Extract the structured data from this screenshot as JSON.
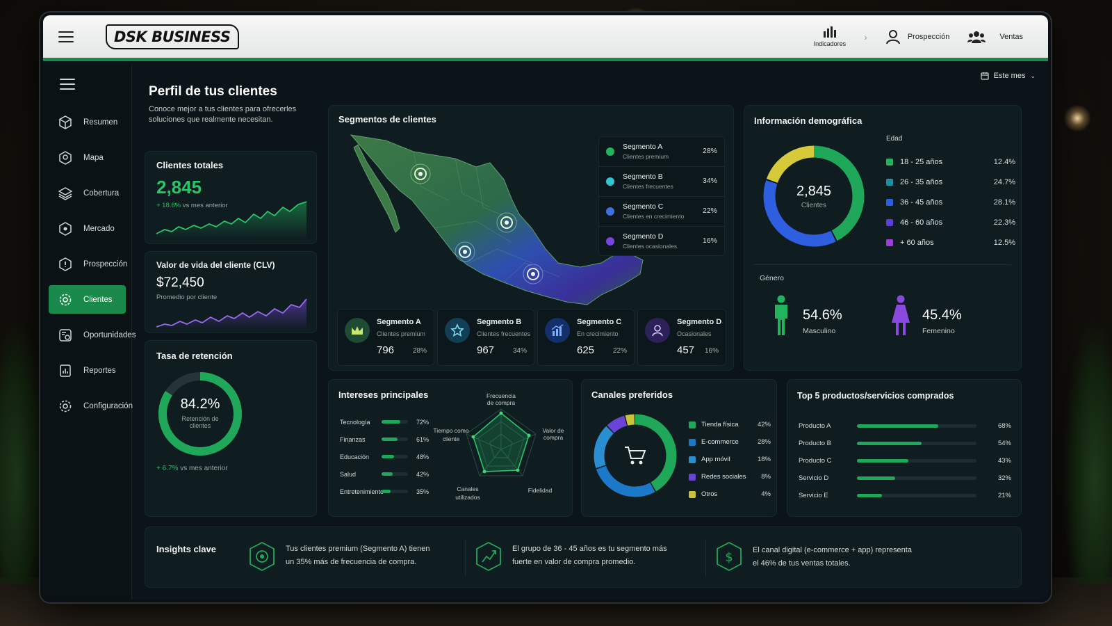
{
  "brand": "DSK BUSINESS",
  "top_nav": [
    {
      "label": "Indicadores",
      "icon": "bar-chart-icon"
    },
    {
      "label": "Prospección",
      "icon": "user-icon"
    },
    {
      "label": "Ventas",
      "icon": "users-icon"
    }
  ],
  "period": "Este mes",
  "sidebar": {
    "items": [
      {
        "label": "Resumen",
        "icon": "cube-icon"
      },
      {
        "label": "Mapa",
        "icon": "map-icon"
      },
      {
        "label": "Cobertura",
        "icon": "layers-icon"
      },
      {
        "label": "Mercado",
        "icon": "target-icon"
      },
      {
        "label": "Prospección",
        "icon": "prospect-icon"
      },
      {
        "label": "Clientes",
        "icon": "gear-icon",
        "active": true
      },
      {
        "label": "Oportunidades",
        "icon": "opportunity-icon"
      },
      {
        "label": "Reportes",
        "icon": "report-icon"
      },
      {
        "label": "Configuración",
        "icon": "settings-icon"
      }
    ]
  },
  "page": {
    "title": "Perfil de tus clientes",
    "subtitle_line1": "Conoce mejor a tus clientes para ofrecerles",
    "subtitle_line2": "soluciones que realmente necesitan."
  },
  "kpis": {
    "total_clients": {
      "title": "Clientes totales",
      "value": "2,845",
      "delta": "+ 18.6%",
      "delta_text": "vs mes anterior"
    },
    "clv": {
      "title": "Valor de vida del cliente (CLV)",
      "value": "$72,450",
      "sub": "Promedio por cliente"
    },
    "retention": {
      "title": "Tasa de retención",
      "value": "84.2%",
      "value_num": 84.2,
      "label_line1": "Retención de",
      "label_line2": "clientes",
      "delta": "+ 6.7%",
      "delta_text": "vs mes anterior"
    }
  },
  "segments": {
    "title": "Segmentos de clientes",
    "legend": [
      {
        "name": "Segmento A",
        "sub": "Clientes premium",
        "pct": "28%",
        "color": "#22b35e"
      },
      {
        "name": "Segmento B",
        "sub": "Clientes frecuentes",
        "pct": "34%",
        "color": "#2fc6d6"
      },
      {
        "name": "Segmento C",
        "sub": "Clientes en crecimiento",
        "pct": "22%",
        "color": "#3f6fe0"
      },
      {
        "name": "Segmento D",
        "sub": "Clientes ocasionales",
        "pct": "16%",
        "color": "#7a45e0"
      }
    ],
    "cards": [
      {
        "name": "Segmento A",
        "sub": "Clientes premium",
        "count": "796",
        "pct": "28%",
        "icon": "crown-icon",
        "color": "#1f7f47"
      },
      {
        "name": "Segmento B",
        "sub": "Clientes frecuentes",
        "count": "967",
        "pct": "34%",
        "icon": "star-icon",
        "color": "#15506b"
      },
      {
        "name": "Segmento C",
        "sub": "En crecimiento",
        "count": "625",
        "pct": "22%",
        "icon": "growth-icon",
        "color": "#1a3f8a"
      },
      {
        "name": "Segmento D",
        "sub": "Ocasionales",
        "count": "457",
        "pct": "16%",
        "icon": "person-icon",
        "color": "#3a2a72"
      }
    ]
  },
  "demographics": {
    "title": "Información demográfica",
    "donut_value": "2,845",
    "donut_label": "Clientes",
    "age_title": "Edad",
    "ages": [
      {
        "label": "18 - 25 años",
        "pct": "12.4%",
        "value": 12.4,
        "color": "#22b35e"
      },
      {
        "label": "26 - 35 años",
        "pct": "24.7%",
        "value": 24.7,
        "color": "#1c8fa0"
      },
      {
        "label": "36 - 45 años",
        "pct": "28.1%",
        "value": 28.1,
        "color": "#2d5fe0"
      },
      {
        "label": "46 - 60 años",
        "pct": "22.3%",
        "value": 22.3,
        "color": "#5a3fd8"
      },
      {
        "label": "+ 60 años",
        "pct": "12.5%",
        "value": 12.5,
        "color": "#9a3fd8"
      }
    ],
    "donut_colors": [
      "#1fa85a",
      "#2d5fe0",
      "#d6c93a"
    ],
    "gender_title": "Género",
    "male": {
      "pct": "54.6%",
      "label": "Masculino",
      "color": "#22b35e"
    },
    "female": {
      "pct": "45.4%",
      "label": "Femenino",
      "color": "#8a4ae0"
    }
  },
  "interests": {
    "title": "Intereses principales",
    "items": [
      {
        "label": "Tecnología",
        "pct": "72%",
        "value": 72
      },
      {
        "label": "Finanzas",
        "pct": "61%",
        "value": 61
      },
      {
        "label": "Educación",
        "pct": "48%",
        "value": 48
      },
      {
        "label": "Salud",
        "pct": "42%",
        "value": 42
      },
      {
        "label": "Entretenimiento",
        "pct": "35%",
        "value": 35
      }
    ],
    "radar_labels": {
      "top_line1": "Frecuencia",
      "top_line2": "de compra",
      "right_line1": "Valor de",
      "right_line2": "compra",
      "bottom_right": "Fidelidad",
      "bottom_left_line1": "Canales",
      "bottom_left_line2": "utilizados",
      "left_line1": "Tiempo como",
      "left_line2": "cliente"
    }
  },
  "channels": {
    "title": "Canales preferidos",
    "items": [
      {
        "label": "Tienda física",
        "pct": "42%",
        "value": 42,
        "color": "#1fa85a"
      },
      {
        "label": "E-commerce",
        "pct": "28%",
        "value": 28,
        "color": "#1c78c8"
      },
      {
        "label": "App móvil",
        "pct": "18%",
        "value": 18,
        "color": "#2a8fd0"
      },
      {
        "label": "Redes sociales",
        "pct": "8%",
        "value": 8,
        "color": "#6a44d8"
      },
      {
        "label": "Otros",
        "pct": "4%",
        "value": 4,
        "color": "#c9c23a"
      }
    ]
  },
  "top_products": {
    "title": "Top 5 productos/servicios comprados",
    "items": [
      {
        "label": "Producto A",
        "pct": "68%",
        "value": 68
      },
      {
        "label": "Producto B",
        "pct": "54%",
        "value": 54
      },
      {
        "label": "Producto C",
        "pct": "43%",
        "value": 43
      },
      {
        "label": "Servicio D",
        "pct": "32%",
        "value": 32
      },
      {
        "label": "Servicio E",
        "pct": "21%",
        "value": 21
      }
    ]
  },
  "insights": {
    "title": "Insights clave",
    "items": [
      {
        "line1": "Tus clientes premium (Segmento A) tienen",
        "line2": "un 35% más de frecuencia de compra.",
        "icon": "target-icon"
      },
      {
        "line1": "El grupo de 36 - 45 años es tu segmento más",
        "line2": "fuerte en valor de compra promedio.",
        "icon": "growth-icon"
      },
      {
        "line1": "El canal digital (e-commerce + app) representa",
        "line2": "el 46% de tus ventas totales.",
        "icon": "dollar-icon"
      }
    ]
  }
}
